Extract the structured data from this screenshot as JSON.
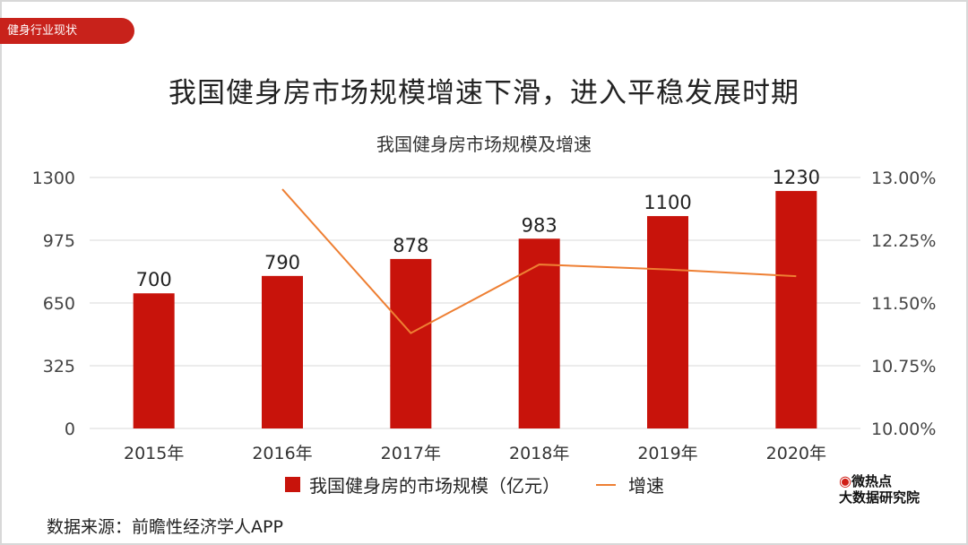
{
  "tag": "健身行业现状",
  "title": "我国健身房市场规模增速下滑，进入平稳发展时期",
  "source": "数据来源：前瞻性经济学人APP",
  "logo": {
    "line1": "微热点",
    "line2": "大数据研究院"
  },
  "colors": {
    "bar": "#c8130b",
    "line": "#ee7f33",
    "accent": "#c8221b"
  },
  "chart_data": {
    "type": "bar",
    "title": "我国健身房市场规模及增速",
    "categories": [
      "2015年",
      "2016年",
      "2017年",
      "2018年",
      "2019年",
      "2020年"
    ],
    "series": [
      {
        "name": "我国健身房的市场规模（亿元）",
        "type": "bar",
        "axis": "left",
        "values": [
          700,
          790,
          878,
          983,
          1100,
          1230
        ]
      },
      {
        "name": "增速",
        "type": "line",
        "axis": "right",
        "values": [
          null,
          12.86,
          11.14,
          11.96,
          11.9,
          11.82
        ]
      }
    ],
    "y_left": {
      "min": 0,
      "max": 1300,
      "ticks": [
        0,
        325,
        650,
        975,
        1300
      ],
      "tick_labels": [
        "0",
        "325",
        "650",
        "975",
        "1300"
      ]
    },
    "y_right": {
      "min": 10.0,
      "max": 13.0,
      "ticks": [
        10.0,
        10.75,
        11.5,
        12.25,
        13.0
      ],
      "tick_labels": [
        "10.00%",
        "10.75%",
        "11.50%",
        "12.25%",
        "13.00%"
      ]
    },
    "legend_position": "bottom",
    "grid": true
  }
}
